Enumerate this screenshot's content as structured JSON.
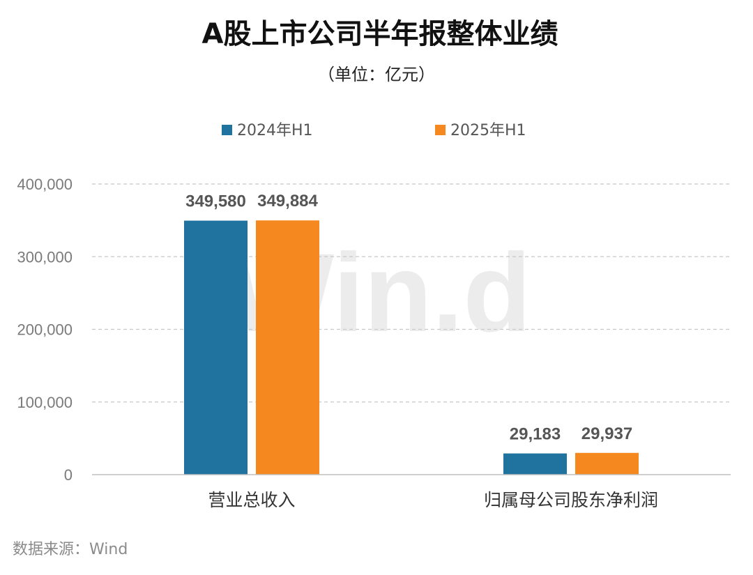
{
  "chart_data": {
    "type": "bar",
    "title": "A股上市公司半年报整体业绩",
    "subtitle": "（单位：亿元）",
    "categories": [
      "营业总收入",
      "归属母公司股东净利润"
    ],
    "series": [
      {
        "name": "2024年H1",
        "color": "#21739F",
        "values": [
          349580,
          29183
        ],
        "labels": [
          "349,580",
          "29,183"
        ]
      },
      {
        "name": "2025年H1",
        "color": "#F5881F",
        "values": [
          349884,
          29937
        ],
        "labels": [
          "349,884",
          "29,937"
        ]
      }
    ],
    "ylim": [
      0,
      400000
    ],
    "yticks": [
      "0",
      "100,000",
      "200,000",
      "300,000",
      "400,000"
    ],
    "ytick_values": [
      0,
      100000,
      200000,
      300000,
      400000
    ],
    "grid": "dashed horizontal",
    "legend_position": "top-center",
    "source": "数据来源：Wind",
    "watermark": "Win.d"
  }
}
